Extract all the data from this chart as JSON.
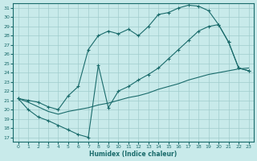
{
  "xlabel": "Humidex (Indice chaleur)",
  "bg_color": "#c8eaea",
  "grid_color": "#a0cccc",
  "line_color": "#1a6b6b",
  "xlim": [
    -0.5,
    23.5
  ],
  "ylim": [
    16.5,
    31.5
  ],
  "xticks": [
    0,
    1,
    2,
    3,
    4,
    5,
    6,
    7,
    8,
    9,
    10,
    11,
    12,
    13,
    14,
    15,
    16,
    17,
    18,
    19,
    20,
    21,
    22,
    23
  ],
  "yticks": [
    17,
    18,
    19,
    20,
    21,
    22,
    23,
    24,
    25,
    26,
    27,
    28,
    29,
    30,
    31
  ],
  "line1": {
    "x": [
      0,
      1,
      2,
      3,
      4,
      5,
      6,
      7,
      8,
      9,
      10,
      11,
      12,
      13,
      14,
      15,
      16,
      17,
      18,
      19,
      20,
      21,
      22,
      23
    ],
    "y": [
      21.2,
      21.0,
      20.8,
      20.3,
      20.0,
      21.5,
      22.5,
      26.5,
      28.0,
      28.5,
      28.2,
      28.7,
      28.0,
      29.0,
      30.3,
      30.5,
      31.0,
      31.3,
      31.2,
      30.7,
      29.2,
      27.3,
      24.5,
      24.2
    ]
  },
  "line2": {
    "x": [
      0,
      1,
      2,
      3,
      4,
      5,
      6,
      7,
      8,
      9,
      10,
      11,
      12,
      13,
      14,
      15,
      16,
      17,
      18,
      19,
      20,
      21,
      22,
      23
    ],
    "y": [
      21.2,
      20.0,
      19.2,
      18.8,
      18.3,
      17.8,
      17.3,
      17.0,
      24.8,
      20.2,
      22.0,
      22.5,
      23.2,
      23.8,
      24.5,
      25.5,
      26.5,
      27.5,
      28.5,
      29.0,
      29.2,
      27.3,
      24.5,
      24.2
    ]
  },
  "line3": {
    "x": [
      0,
      1,
      2,
      3,
      4,
      5,
      6,
      7,
      8,
      9,
      10,
      11,
      12,
      13,
      14,
      15,
      16,
      17,
      18,
      19,
      20,
      21,
      22,
      23
    ],
    "y": [
      21.2,
      20.8,
      20.3,
      19.8,
      19.5,
      19.8,
      20.0,
      20.2,
      20.5,
      20.7,
      21.0,
      21.3,
      21.5,
      21.8,
      22.2,
      22.5,
      22.8,
      23.2,
      23.5,
      23.8,
      24.0,
      24.2,
      24.4,
      24.5
    ]
  }
}
